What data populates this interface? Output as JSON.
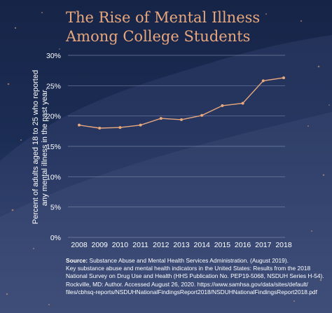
{
  "title_line1": "The Rise of Mental Illness",
  "title_line2": "Among College Students",
  "chart_data": {
    "type": "line",
    "title": "The Rise of Mental Illness Among College Students",
    "xlabel": "",
    "ylabel_line1": "Percent of adults aged 18 to 25 who reported",
    "ylabel_line2": "any mental illness in the past year.",
    "x": [
      "2008",
      "2009",
      "2010",
      "2011",
      "2012",
      "2013",
      "2014",
      "2015",
      "2016",
      "2017",
      "2018"
    ],
    "values": [
      18.5,
      18.0,
      18.1,
      18.5,
      19.6,
      19.4,
      20.1,
      21.7,
      22.1,
      25.8,
      26.3
    ],
    "ylim": [
      0,
      30
    ],
    "yticks": [
      "0%",
      "5%",
      "10%",
      "15%",
      "20%",
      "25%",
      "30%"
    ],
    "grid": true,
    "line_color": "#e9a77c"
  },
  "source": {
    "label": "Source:",
    "line1": " Substance Abuse and Mental Health Services Administration. (August 2019).",
    "line2": "Key substance abuse and mental health indicators in the United States: Results from the 2018",
    "line3": "National Survey on Drug Use and Health (HHS Publication No. PEP19-5068, NSDUH Series H-54).",
    "line4": "Rockville, MD: Author. Accessed August 26, 2020. https://www.samhsa.gov/data/sites/default/",
    "line5": "files/cbhsq-reports/NSDUHNationalFindingsReport2018/NSDUHNationalFindingsReport2018.pdf"
  }
}
